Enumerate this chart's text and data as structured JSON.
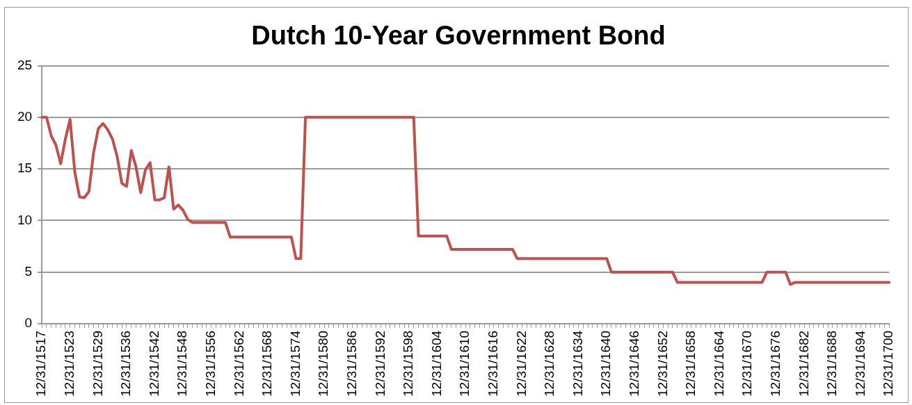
{
  "chart_data": {
    "type": "line",
    "title": "Dutch 10-Year Government Bond",
    "categories": [
      "12/31/1517",
      null,
      null,
      null,
      null,
      null,
      "12/31/1523",
      null,
      null,
      null,
      null,
      null,
      "12/31/1529",
      null,
      null,
      null,
      null,
      null,
      "12/31/1536",
      null,
      null,
      null,
      null,
      null,
      "12/31/1542",
      null,
      null,
      null,
      null,
      null,
      "12/31/1548",
      null,
      null,
      null,
      null,
      null,
      "12/31/1556",
      null,
      null,
      null,
      null,
      null,
      "12/31/1562",
      null,
      null,
      null,
      null,
      null,
      "12/31/1568",
      null,
      null,
      null,
      null,
      null,
      "12/31/1574",
      null,
      null,
      null,
      null,
      null,
      "12/31/1580",
      null,
      null,
      null,
      null,
      null,
      "12/31/1586",
      null,
      null,
      null,
      null,
      null,
      "12/31/1592",
      null,
      null,
      null,
      null,
      null,
      "12/31/1598",
      null,
      null,
      null,
      null,
      null,
      "12/31/1604",
      null,
      null,
      null,
      null,
      null,
      "12/31/1610",
      null,
      null,
      null,
      null,
      null,
      "12/31/1616",
      null,
      null,
      null,
      null,
      null,
      "12/31/1622",
      null,
      null,
      null,
      null,
      null,
      "12/31/1628",
      null,
      null,
      null,
      null,
      null,
      "12/31/1634",
      null,
      null,
      null,
      null,
      null,
      "12/31/1640",
      null,
      null,
      null,
      null,
      null,
      "12/31/1646",
      null,
      null,
      null,
      null,
      null,
      "12/31/1652",
      null,
      null,
      null,
      null,
      null,
      "12/31/1658",
      null,
      null,
      null,
      null,
      null,
      "12/31/1664",
      null,
      null,
      null,
      null,
      null,
      "12/31/1670",
      null,
      null,
      null,
      null,
      null,
      "12/31/1676",
      null,
      null,
      null,
      null,
      null,
      "12/31/1682",
      null,
      null,
      null,
      null,
      null,
      "12/31/1688",
      null,
      null,
      null,
      null,
      null,
      "12/31/1694",
      null,
      null,
      null,
      null,
      null,
      "12/31/1700"
    ],
    "values": [
      20,
      20,
      18.2,
      17.3,
      15.5,
      17.9,
      19.8,
      14.7,
      12.3,
      12.2,
      12.8,
      16.6,
      18.9,
      19.4,
      18.8,
      17.9,
      16.2,
      13.6,
      13.3,
      16.8,
      15.2,
      12.7,
      14.9,
      15.6,
      12.0,
      12.0,
      12.2,
      15.2,
      11.1,
      11.5,
      11.0,
      10.1,
      9.8,
      9.8,
      9.8,
      9.8,
      9.8,
      9.8,
      9.8,
      9.8,
      8.4,
      8.4,
      8.4,
      8.4,
      8.4,
      8.4,
      8.4,
      8.4,
      8.4,
      8.4,
      8.4,
      8.4,
      8.4,
      8.4,
      6.3,
      6.3,
      20,
      20,
      20,
      20,
      20,
      20,
      20,
      20,
      20,
      20,
      20,
      20,
      20,
      20,
      20,
      20,
      20,
      20,
      20,
      20,
      20,
      20,
      20,
      20,
      8.5,
      8.5,
      8.5,
      8.5,
      8.5,
      8.5,
      8.5,
      7.2,
      7.2,
      7.2,
      7.2,
      7.2,
      7.2,
      7.2,
      7.2,
      7.2,
      7.2,
      7.2,
      7.2,
      7.2,
      7.2,
      6.3,
      6.3,
      6.3,
      6.3,
      6.3,
      6.3,
      6.3,
      6.3,
      6.3,
      6.3,
      6.3,
      6.3,
      6.3,
      6.3,
      6.3,
      6.3,
      6.3,
      6.3,
      6.3,
      6.3,
      5,
      5,
      5,
      5,
      5,
      5,
      5,
      5,
      5,
      5,
      5,
      5,
      5,
      5,
      4,
      4,
      4,
      4,
      4,
      4,
      4,
      4,
      4,
      4,
      4,
      4,
      4,
      4,
      4,
      4,
      4,
      4,
      4,
      5,
      5,
      5,
      5,
      5,
      3.8,
      4,
      4,
      4,
      4,
      4,
      4,
      4,
      4,
      4,
      4,
      4,
      4,
      4,
      4,
      4,
      4,
      4,
      4,
      4,
      4,
      4
    ],
    "color": "#c0504d",
    "ylim": [
      0,
      25
    ],
    "yticks": [
      0,
      5,
      10,
      15,
      20,
      25
    ],
    "grid": "y",
    "legend": false
  }
}
